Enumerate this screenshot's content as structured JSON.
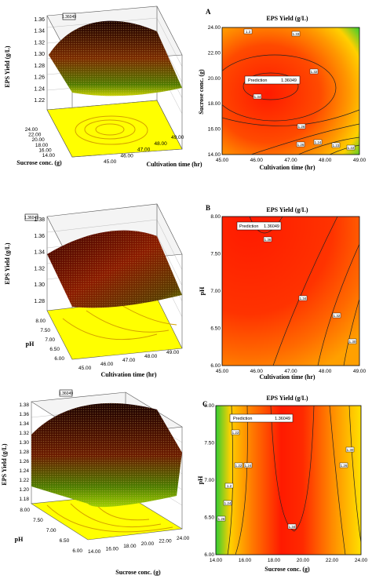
{
  "chart_data": [
    {
      "type": "surface3d",
      "panel": "A",
      "zlabel": "EPS Yield (g/L)",
      "ylabel": "Sucrose conc. (g)",
      "xlabel": "Cultivation time (hr)",
      "zticks": [
        "1.22",
        "1.24",
        "1.26",
        "1.28",
        "1.30",
        "1.32",
        "1.34",
        "1.36"
      ],
      "xticks": [
        "45.00",
        "46.00",
        "47.00",
        "48.00",
        "49.00"
      ],
      "yticks": [
        "14.00",
        "16.00",
        "18.00",
        "20.00",
        "22.00",
        "24.00"
      ],
      "zlim": [
        1.22,
        1.36
      ],
      "marker_label": "1.36049"
    },
    {
      "type": "contour",
      "panel": "A",
      "title": "EPS Yield (g/L)",
      "xlabel": "Cultivation time (hr)",
      "ylabel": "Sucrose conc. (g)",
      "xlim": [
        45,
        49
      ],
      "ylim": [
        14,
        24
      ],
      "xticks": [
        "45.00",
        "46.00",
        "47.00",
        "48.00",
        "49.00"
      ],
      "yticks": [
        "14.00",
        "16.00",
        "18.00",
        "20.00",
        "22.00",
        "24.00"
      ],
      "contour_labels": [
        "1.3",
        "1.33",
        "1.34",
        "1.26",
        "1.26",
        "1.24",
        "1.23",
        "1.22",
        "1.32"
      ],
      "prediction_label": "Prediction",
      "prediction_value": "1.36049",
      "optimum": [
        46.2,
        19.3
      ]
    },
    {
      "type": "surface3d",
      "panel": "B",
      "zlabel": "EPS Yield (g/L)",
      "ylabel": "pH",
      "xlabel": "Cultivation time (hr)",
      "zticks": [
        "1.28",
        "1.30",
        "1.32",
        "1.34",
        "1.36",
        "1.38"
      ],
      "xticks": [
        "45.00",
        "46.00",
        "47.00",
        "48.00",
        "49.00"
      ],
      "yticks": [
        "6.00",
        "6.50",
        "7.00",
        "7.50",
        "8.00"
      ],
      "zlim": [
        1.28,
        1.38
      ],
      "marker_label": "1.36049"
    },
    {
      "type": "contour",
      "panel": "B",
      "title": "EPS Yield (g/L)",
      "xlabel": "Cultivation time (hr)",
      "ylabel": "pH",
      "xlim": [
        45,
        49
      ],
      "ylim": [
        6,
        8
      ],
      "xticks": [
        "45.00",
        "46.00",
        "47.00",
        "48.00",
        "49.00"
      ],
      "yticks": [
        "6.00",
        "6.50",
        "7.00",
        "7.50",
        "8.00"
      ],
      "contour_labels": [
        "1.36",
        "1.34",
        "1.32",
        "1.30"
      ],
      "prediction_label": "Prediction",
      "prediction_value": "1.36049",
      "optimum": [
        45.9,
        7.7
      ]
    },
    {
      "type": "surface3d",
      "panel": "C",
      "zlabel": "EPS Yield (g/L)",
      "ylabel": "pH",
      "xlabel": "Sucrose conc. (g)",
      "zticks": [
        "1.18",
        "1.20",
        "1.22",
        "1.24",
        "1.26",
        "1.28",
        "1.30",
        "1.32",
        "1.34",
        "1.36",
        "1.38"
      ],
      "xticks": [
        "14.00",
        "16.00",
        "18.00",
        "20.00",
        "22.00",
        "24.00"
      ],
      "yticks": [
        "6.00",
        "6.50",
        "7.00",
        "7.50",
        "8.00"
      ],
      "zlim": [
        1.18,
        1.38
      ],
      "marker_label": "1.36049"
    },
    {
      "type": "contour",
      "panel": "C",
      "title": "EPS Yield (g/L)",
      "xlabel": "Sucrose conc. (g)",
      "ylabel": "pH",
      "xlim": [
        14,
        24
      ],
      "ylim": [
        6,
        8
      ],
      "xticks": [
        "14.00",
        "16.00",
        "18.00",
        "20.00",
        "22.00",
        "24.00"
      ],
      "yticks": [
        "6.00",
        "6.50",
        "7.00",
        "7.50",
        "8.00"
      ],
      "contour_labels": [
        "1.2",
        "1.22",
        "1.24",
        "1.26",
        "1.34",
        "1.30",
        "1.26",
        "1.24",
        "1.22"
      ],
      "prediction_label": "Prediction",
      "prediction_value": "1.36049",
      "optimum": [
        19.6,
        7.9
      ]
    }
  ],
  "panel_letters": [
    "A",
    "B",
    "C"
  ]
}
